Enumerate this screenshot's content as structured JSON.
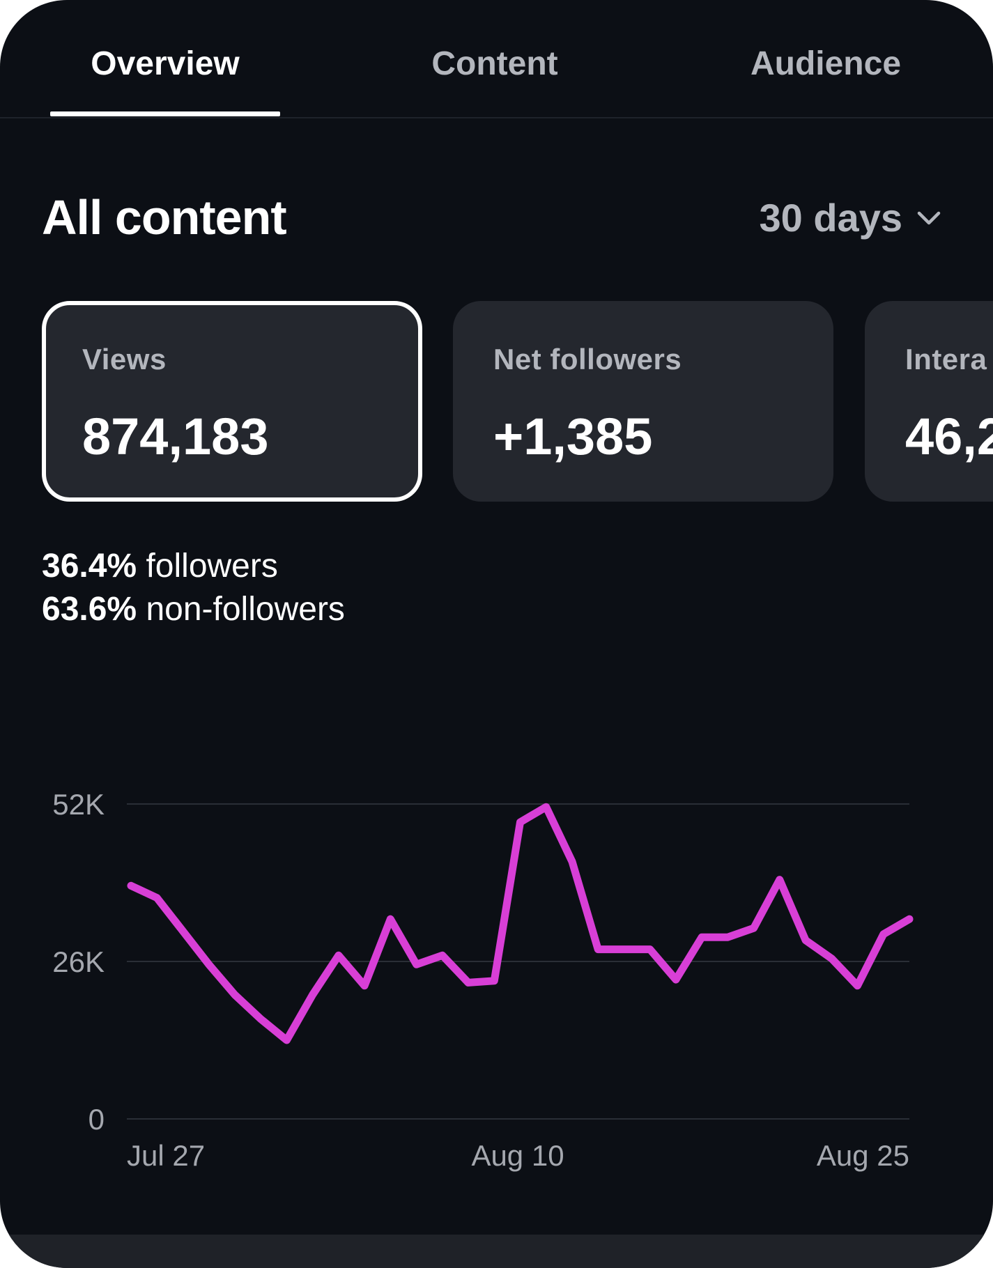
{
  "tabs": [
    {
      "label": "Overview",
      "active": true
    },
    {
      "label": "Content",
      "active": false
    },
    {
      "label": "Audience",
      "active": false
    }
  ],
  "header": {
    "title": "All content",
    "range": "30 days",
    "range_icon": "chevron-down-icon"
  },
  "cards": [
    {
      "label": "Views",
      "value": "874,183",
      "selected": true
    },
    {
      "label": "Net followers",
      "value": "+1,385",
      "selected": false
    },
    {
      "label": "Intera",
      "value": "46,2",
      "selected": false
    }
  ],
  "breakdown": {
    "followers_pct": "36.4%",
    "followers_label": "followers",
    "nonfollowers_pct": "63.6%",
    "nonfollowers_label": "non-followers"
  },
  "colors": {
    "accent_line": "#d83fd6",
    "background": "#0c0f15",
    "card": "#24272e"
  },
  "chart_data": {
    "type": "line",
    "y_ticks": [
      "52K",
      "26K",
      "0"
    ],
    "x_ticks": [
      "Jul 27",
      "Aug 10",
      "Aug 25"
    ],
    "ylim": [
      0,
      52000
    ],
    "grid": true,
    "series": [
      {
        "values": [
          38500,
          36500,
          31000,
          25500,
          20500,
          16500,
          13000,
          20500,
          27000,
          22000,
          33000,
          25500,
          27000,
          22500,
          22800,
          49000,
          51500,
          42500,
          28000,
          28000,
          28000,
          23000,
          30000,
          30000,
          31500,
          39500,
          29500,
          26500,
          22000,
          30500,
          33000
        ]
      }
    ]
  }
}
